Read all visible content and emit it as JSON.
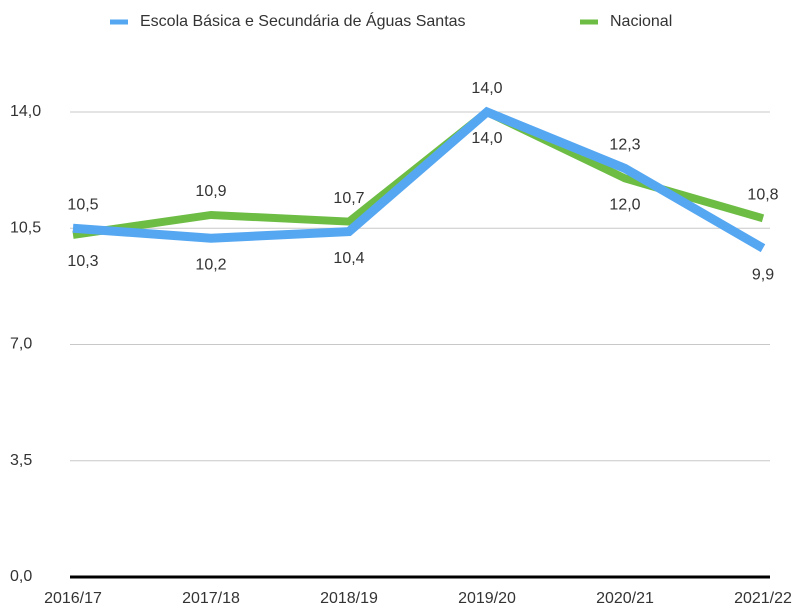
{
  "chart_data": {
    "type": "line",
    "categories": [
      "2016/17",
      "2017/18",
      "2018/19",
      "2019/20",
      "2020/21",
      "2021/22"
    ],
    "series": [
      {
        "name": "Escola Básica e Secundária de Águas Santas",
        "color": "#55a7f2",
        "values": [
          10.5,
          10.2,
          10.4,
          14.0,
          12.3,
          9.9
        ],
        "value_labels": [
          "10,5",
          "10,2",
          "10,4",
          "14,0",
          "12,3",
          "9,9"
        ]
      },
      {
        "name": "Nacional",
        "color": "#6dbd45",
        "values": [
          10.3,
          10.9,
          10.7,
          14.0,
          12.0,
          10.8
        ],
        "value_labels": [
          "10,3",
          "10,9",
          "10,7",
          "14,0",
          "12,0",
          "10,8"
        ]
      }
    ],
    "ylim": [
      0,
      14
    ],
    "yticks": [
      {
        "value": 0,
        "label": "0,0"
      },
      {
        "value": 3.5,
        "label": "3,5"
      },
      {
        "value": 7,
        "label": "7,0"
      },
      {
        "value": 10.5,
        "label": "10,5"
      },
      {
        "value": 14,
        "label": "14,0"
      }
    ],
    "grid": true,
    "legend": "top"
  }
}
